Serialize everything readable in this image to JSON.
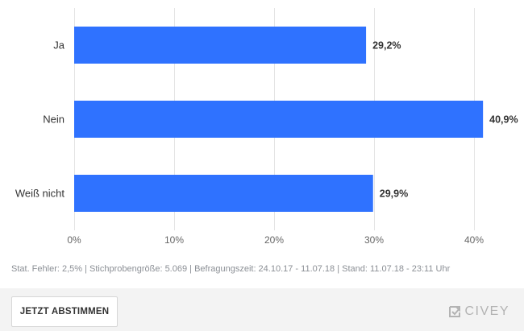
{
  "chart_data": {
    "type": "bar",
    "orientation": "horizontal",
    "categories": [
      "Ja",
      "Nein",
      "Weiß nicht"
    ],
    "values": [
      29.2,
      40.9,
      29.9
    ],
    "value_labels": [
      "29,2%",
      "40,9%",
      "29,9%"
    ],
    "x_ticks": [
      0,
      10,
      20,
      30,
      40
    ],
    "x_tick_labels": [
      "0%",
      "10%",
      "20%",
      "30%",
      "40%"
    ],
    "xlim": [
      0,
      42
    ],
    "grid": true,
    "bar_color": "#2f72ff"
  },
  "footnote": "Stat. Fehler: 2,5% | Stichprobengröße: 5.069 | Befragungszeit: 24.10.17 - 11.07.18 | Stand: 11.07.18 - 23:11 Uhr",
  "vote_button_label": "JETZT ABSTIMMEN",
  "brand": {
    "name": "CIVEY",
    "icon": "civey-logo-icon",
    "color": "#b3b3b3"
  }
}
